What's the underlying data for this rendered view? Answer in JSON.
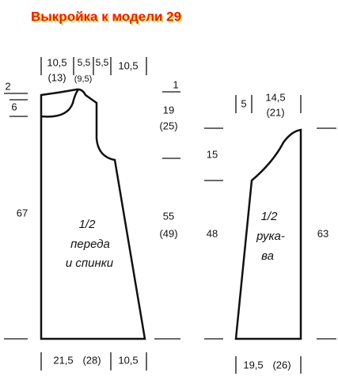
{
  "title": "Выкройка к модели 29",
  "front": {
    "top": [
      "10,5",
      "(13)",
      "5,5",
      "(9,5)",
      "5,5",
      "10,5"
    ],
    "left": [
      "2",
      "6",
      "67"
    ],
    "right": [
      "1",
      "19",
      "(25)",
      "55",
      "(49)"
    ],
    "label": [
      "1/2",
      "переда",
      "и спинки"
    ],
    "bottom": [
      "21,5",
      "(28)",
      "10,5"
    ]
  },
  "sleeve": {
    "top": [
      "5",
      "14,5",
      "(21)"
    ],
    "left": [
      "15",
      "48"
    ],
    "right": [
      "63"
    ],
    "label": [
      "1/2",
      "рука-",
      "ва"
    ],
    "bottom": [
      "19,5",
      "(26)"
    ]
  }
}
